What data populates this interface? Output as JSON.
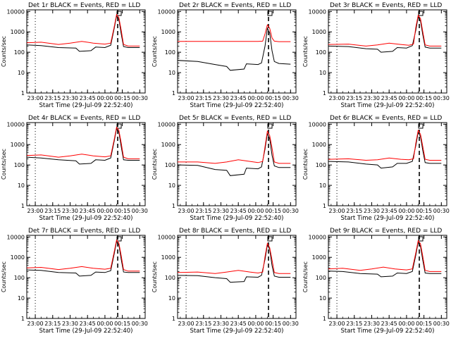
{
  "figure": {
    "start_time_label": "Start Time (29-Jul-09 22:52:40)",
    "y_axis_label": "Counts/sec",
    "series_colors": {
      "events": "#000000",
      "lld": "#ff0000"
    },
    "marker_line_style": "dashed"
  },
  "chart_data": [
    {
      "type": "line",
      "title": "Det 1r BLACK = Events, RED = LLD",
      "xlabel": "Start Time (29-Jul-09 22:52:40)",
      "ylabel": "Counts/sec",
      "yscale": "log",
      "ylim": [
        1,
        12000
      ],
      "x_ticks": [
        "23:00",
        "23:15",
        "23:30",
        "23:45",
        "00:00",
        "00:15",
        "00:30"
      ],
      "y_ticks": [
        "1",
        "10",
        "100",
        "1000",
        "10000"
      ],
      "vlines": [
        {
          "x": "23:00",
          "style": "dotted"
        },
        {
          "x": "00:11",
          "style": "dashed"
        }
      ],
      "series": [
        {
          "name": "Events",
          "color": "#000000",
          "x": [
            "22:52:40",
            "23:05",
            "23:20",
            "23:35",
            "23:38",
            "23:48",
            "23:52",
            "00:00",
            "00:05",
            "00:08",
            "00:10",
            "00:12",
            "00:14",
            "00:16",
            "00:20",
            "00:30"
          ],
          "values": [
            230,
            210,
            170,
            160,
            110,
            120,
            180,
            170,
            220,
            1500,
            6000,
            4000,
            800,
            190,
            170,
            170
          ]
        },
        {
          "name": "LLD",
          "color": "#ff0000",
          "x": [
            "22:52:40",
            "23:05",
            "23:20",
            "23:30",
            "23:40",
            "23:50",
            "00:00",
            "00:05",
            "00:08",
            "00:10",
            "00:12",
            "00:14",
            "00:16",
            "00:20",
            "00:30"
          ],
          "values": [
            290,
            310,
            240,
            280,
            340,
            280,
            250,
            280,
            1800,
            7000,
            5000,
            1200,
            240,
            200,
            200
          ]
        }
      ]
    },
    {
      "type": "line",
      "title": "Det 2r BLACK = Events, RED = LLD",
      "xlabel": "Start Time (29-Jul-09 22:52:40)",
      "ylabel": "Counts/sec",
      "yscale": "log",
      "ylim": [
        1,
        12000
      ],
      "x_ticks": [
        "23:00",
        "23:15",
        "23:30",
        "23:45",
        "00:00",
        "00:15",
        "00:30"
      ],
      "y_ticks": [
        "1",
        "10",
        "100",
        "1000",
        "10000"
      ],
      "vlines": [
        {
          "x": "23:00",
          "style": "dotted"
        },
        {
          "x": "00:11",
          "style": "dashed"
        }
      ],
      "series": [
        {
          "name": "Events",
          "color": "#000000",
          "x": [
            "22:52:40",
            "23:10",
            "23:25",
            "23:35",
            "23:38",
            "23:50",
            "23:52",
            "00:02",
            "00:05",
            "00:08",
            "00:10",
            "00:12",
            "00:14",
            "00:16",
            "00:20",
            "00:30"
          ],
          "values": [
            40,
            35,
            25,
            20,
            13,
            15,
            27,
            25,
            30,
            200,
            1500,
            900,
            120,
            35,
            28,
            26
          ]
        },
        {
          "name": "LLD",
          "color": "#ff0000",
          "x": [
            "22:52:40",
            "23:30",
            "00:02",
            "00:06",
            "00:08",
            "00:10",
            "00:12",
            "00:14",
            "00:16",
            "00:20",
            "00:30"
          ],
          "values": [
            340,
            340,
            340,
            350,
            800,
            2200,
            1500,
            500,
            350,
            330,
            330
          ]
        }
      ]
    },
    {
      "type": "line",
      "title": "Det 3r BLACK = Events, RED = LLD",
      "xlabel": "Start Time (29-Jul-09 22:52:40)",
      "ylabel": "Counts/sec",
      "yscale": "log",
      "ylim": [
        1,
        12000
      ],
      "x_ticks": [
        "23:00",
        "23:15",
        "23:30",
        "23:45",
        "00:00",
        "00:15",
        "00:30"
      ],
      "y_ticks": [
        "1",
        "10",
        "100",
        "1000",
        "10000"
      ],
      "vlines": [
        {
          "x": "23:00",
          "style": "dotted"
        },
        {
          "x": "00:11",
          "style": "dashed"
        }
      ],
      "series": [
        {
          "name": "Events",
          "color": "#000000",
          "x": [
            "22:52:40",
            "23:10",
            "23:25",
            "23:35",
            "23:38",
            "23:48",
            "23:52",
            "00:00",
            "00:05",
            "00:08",
            "00:10",
            "00:12",
            "00:14",
            "00:16",
            "00:20",
            "00:30"
          ],
          "values": [
            200,
            190,
            150,
            140,
            100,
            110,
            170,
            160,
            210,
            1200,
            5500,
            3500,
            700,
            180,
            160,
            160
          ]
        },
        {
          "name": "LLD",
          "color": "#ff0000",
          "x": [
            "22:52:40",
            "23:10",
            "23:25",
            "23:35",
            "23:45",
            "23:55",
            "00:02",
            "00:06",
            "00:08",
            "00:10",
            "00:12",
            "00:14",
            "00:16",
            "00:20",
            "00:30"
          ],
          "values": [
            240,
            250,
            200,
            230,
            280,
            240,
            220,
            250,
            1700,
            6500,
            4500,
            1000,
            230,
            200,
            200
          ]
        }
      ]
    },
    {
      "type": "line",
      "title": "Det 4r BLACK = Events, RED = LLD",
      "xlabel": "Start Time (29-Jul-09 22:52:40)",
      "ylabel": "Counts/sec",
      "yscale": "log",
      "ylim": [
        1,
        12000
      ],
      "x_ticks": [
        "23:00",
        "23:15",
        "23:30",
        "23:45",
        "00:00",
        "00:15",
        "00:30"
      ],
      "y_ticks": [
        "1",
        "10",
        "100",
        "1000",
        "10000"
      ],
      "vlines": [
        {
          "x": "23:00",
          "style": "dotted"
        },
        {
          "x": "00:11",
          "style": "dashed"
        }
      ],
      "series": [
        {
          "name": "Events",
          "color": "#000000",
          "x": [
            "22:52:40",
            "23:05",
            "23:20",
            "23:35",
            "23:38",
            "23:48",
            "23:52",
            "00:00",
            "00:05",
            "00:08",
            "00:10",
            "00:12",
            "00:14",
            "00:16",
            "00:20",
            "00:30"
          ],
          "values": [
            240,
            220,
            180,
            160,
            110,
            120,
            180,
            170,
            220,
            1500,
            6000,
            4000,
            800,
            180,
            170,
            170
          ]
        },
        {
          "name": "LLD",
          "color": "#ff0000",
          "x": [
            "22:52:40",
            "23:05",
            "23:20",
            "23:30",
            "23:40",
            "23:50",
            "00:00",
            "00:05",
            "00:08",
            "00:10",
            "00:12",
            "00:14",
            "00:16",
            "00:20",
            "00:30"
          ],
          "values": [
            290,
            310,
            240,
            280,
            340,
            280,
            250,
            280,
            1800,
            7000,
            5000,
            1200,
            240,
            200,
            200
          ]
        }
      ]
    },
    {
      "type": "line",
      "title": "Det 5r BLACK = Events, RED = LLD",
      "xlabel": "Start Time (29-Jul-09 22:52:40)",
      "ylabel": "Counts/sec",
      "yscale": "log",
      "ylim": [
        1,
        12000
      ],
      "x_ticks": [
        "23:00",
        "23:15",
        "23:30",
        "23:45",
        "00:00",
        "00:15",
        "00:30"
      ],
      "y_ticks": [
        "1",
        "10",
        "100",
        "1000",
        "10000"
      ],
      "vlines": [
        {
          "x": "23:00",
          "style": "dotted"
        },
        {
          "x": "00:11",
          "style": "dashed"
        }
      ],
      "series": [
        {
          "name": "Events",
          "color": "#000000",
          "x": [
            "22:52:40",
            "23:10",
            "23:25",
            "23:35",
            "23:38",
            "23:50",
            "23:52",
            "00:02",
            "00:05",
            "00:08",
            "00:10",
            "00:12",
            "00:14",
            "00:16",
            "00:20",
            "00:30"
          ],
          "values": [
            100,
            95,
            60,
            55,
            30,
            35,
            70,
            65,
            80,
            600,
            3500,
            2000,
            300,
            90,
            75,
            75
          ]
        },
        {
          "name": "LLD",
          "color": "#ff0000",
          "x": [
            "22:52:40",
            "23:10",
            "23:25",
            "23:35",
            "23:45",
            "23:55",
            "00:02",
            "00:06",
            "00:08",
            "00:10",
            "00:12",
            "00:14",
            "00:16",
            "00:20",
            "00:30"
          ],
          "values": [
            140,
            140,
            120,
            140,
            180,
            150,
            130,
            150,
            800,
            4500,
            2800,
            700,
            140,
            120,
            120
          ]
        }
      ]
    },
    {
      "type": "line",
      "title": "Det 6r BLACK = Events, RED = LLD",
      "xlabel": "Start Time (29-Jul-09 22:52:40)",
      "ylabel": "Counts/sec",
      "yscale": "log",
      "ylim": [
        1,
        12000
      ],
      "x_ticks": [
        "23:00",
        "23:15",
        "23:30",
        "23:45",
        "00:00",
        "00:15",
        "00:30"
      ],
      "y_ticks": [
        "1",
        "10",
        "100",
        "1000",
        "10000"
      ],
      "vlines": [
        {
          "x": "23:00",
          "style": "dotted"
        },
        {
          "x": "00:11",
          "style": "dashed"
        }
      ],
      "series": [
        {
          "name": "Events",
          "color": "#000000",
          "x": [
            "22:52:40",
            "23:10",
            "23:25",
            "23:35",
            "23:38",
            "23:48",
            "23:52",
            "00:00",
            "00:05",
            "00:08",
            "00:10",
            "00:12",
            "00:14",
            "00:16",
            "00:20",
            "00:30"
          ],
          "values": [
            150,
            140,
            110,
            100,
            70,
            80,
            120,
            120,
            150,
            900,
            4000,
            2500,
            500,
            130,
            120,
            120
          ]
        },
        {
          "name": "LLD",
          "color": "#ff0000",
          "x": [
            "22:52:40",
            "23:10",
            "23:25",
            "23:35",
            "23:45",
            "23:55",
            "00:02",
            "00:06",
            "00:08",
            "00:10",
            "00:12",
            "00:14",
            "00:16",
            "00:20",
            "00:30"
          ],
          "values": [
            190,
            200,
            170,
            180,
            220,
            190,
            180,
            200,
            1200,
            5000,
            3200,
            800,
            190,
            170,
            170
          ]
        }
      ]
    },
    {
      "type": "line",
      "title": "Det 7r BLACK = Events, RED = LLD",
      "xlabel": "Start Time (29-Jul-09 22:52:40)",
      "ylabel": "Counts/sec",
      "yscale": "log",
      "ylim": [
        1,
        12000
      ],
      "x_ticks": [
        "23:00",
        "23:15",
        "23:30",
        "23:45",
        "00:00",
        "00:15",
        "00:30"
      ],
      "y_ticks": [
        "1",
        "10",
        "100",
        "1000",
        "10000"
      ],
      "vlines": [
        {
          "x": "23:00",
          "style": "dotted"
        },
        {
          "x": "00:11",
          "style": "dashed"
        }
      ],
      "series": [
        {
          "name": "Events",
          "color": "#000000",
          "x": [
            "22:52:40",
            "23:05",
            "23:20",
            "23:35",
            "23:38",
            "23:48",
            "23:52",
            "00:00",
            "00:05",
            "00:08",
            "00:10",
            "00:12",
            "00:14",
            "00:16",
            "00:20",
            "00:30"
          ],
          "values": [
            240,
            230,
            180,
            170,
            120,
            130,
            190,
            180,
            220,
            1500,
            6000,
            4000,
            800,
            190,
            180,
            180
          ]
        },
        {
          "name": "LLD",
          "color": "#ff0000",
          "x": [
            "22:52:40",
            "23:05",
            "23:20",
            "23:30",
            "23:40",
            "23:50",
            "00:00",
            "00:05",
            "00:08",
            "00:10",
            "00:12",
            "00:14",
            "00:16",
            "00:20",
            "00:30"
          ],
          "values": [
            300,
            320,
            250,
            290,
            350,
            290,
            260,
            290,
            1900,
            7000,
            5000,
            1200,
            250,
            210,
            210
          ]
        }
      ]
    },
    {
      "type": "line",
      "title": "Det 8r BLACK = Events, RED = LLD",
      "xlabel": "Start Time (29-Jul-09 22:52:40)",
      "ylabel": "Counts/sec",
      "yscale": "log",
      "ylim": [
        1,
        12000
      ],
      "x_ticks": [
        "23:00",
        "23:15",
        "23:30",
        "23:45",
        "00:00",
        "00:15",
        "00:30"
      ],
      "y_ticks": [
        "1",
        "10",
        "100",
        "1000",
        "10000"
      ],
      "vlines": [
        {
          "x": "23:00",
          "style": "dotted"
        },
        {
          "x": "00:11",
          "style": "dashed"
        }
      ],
      "series": [
        {
          "name": "Events",
          "color": "#000000",
          "x": [
            "22:52:40",
            "23:10",
            "23:25",
            "23:35",
            "23:38",
            "23:50",
            "23:52",
            "00:02",
            "00:05",
            "00:08",
            "00:10",
            "00:12",
            "00:14",
            "00:16",
            "00:20",
            "00:30"
          ],
          "values": [
            130,
            125,
            100,
            90,
            60,
            65,
            110,
            105,
            130,
            800,
            4000,
            2500,
            400,
            120,
            105,
            105
          ]
        },
        {
          "name": "LLD",
          "color": "#ff0000",
          "x": [
            "22:52:40",
            "23:10",
            "23:25",
            "23:35",
            "23:45",
            "23:55",
            "00:02",
            "00:06",
            "00:08",
            "00:10",
            "00:12",
            "00:14",
            "00:16",
            "00:20",
            "00:30"
          ],
          "values": [
            180,
            190,
            160,
            190,
            230,
            190,
            170,
            190,
            1100,
            4800,
            3000,
            750,
            180,
            160,
            160
          ]
        }
      ]
    },
    {
      "type": "line",
      "title": "Det 9r BLACK = Events, RED = LLD",
      "xlabel": "Start Time (29-Jul-09 22:52:40)",
      "ylabel": "Counts/sec",
      "yscale": "log",
      "ylim": [
        1,
        12000
      ],
      "x_ticks": [
        "23:00",
        "23:15",
        "23:30",
        "23:45",
        "00:00",
        "00:15",
        "00:30"
      ],
      "y_ticks": [
        "1",
        "10",
        "100",
        "1000",
        "10000"
      ],
      "vlines": [
        {
          "x": "23:00",
          "style": "dotted"
        },
        {
          "x": "00:11",
          "style": "dashed"
        }
      ],
      "series": [
        {
          "name": "Events",
          "color": "#000000",
          "x": [
            "22:52:40",
            "23:05",
            "23:20",
            "23:35",
            "23:38",
            "23:48",
            "23:52",
            "00:00",
            "00:05",
            "00:08",
            "00:10",
            "00:12",
            "00:14",
            "00:16",
            "00:20",
            "00:30"
          ],
          "values": [
            210,
            200,
            160,
            150,
            110,
            120,
            170,
            160,
            200,
            1300,
            5500,
            3500,
            700,
            170,
            160,
            160
          ]
        },
        {
          "name": "LLD",
          "color": "#ff0000",
          "x": [
            "22:52:40",
            "23:05",
            "23:20",
            "23:30",
            "23:40",
            "23:50",
            "00:00",
            "00:05",
            "00:08",
            "00:10",
            "00:12",
            "00:14",
            "00:16",
            "00:20",
            "00:30"
          ],
          "values": [
            270,
            290,
            230,
            270,
            330,
            270,
            240,
            270,
            1700,
            6500,
            4600,
            1100,
            230,
            200,
            200
          ]
        }
      ]
    }
  ]
}
